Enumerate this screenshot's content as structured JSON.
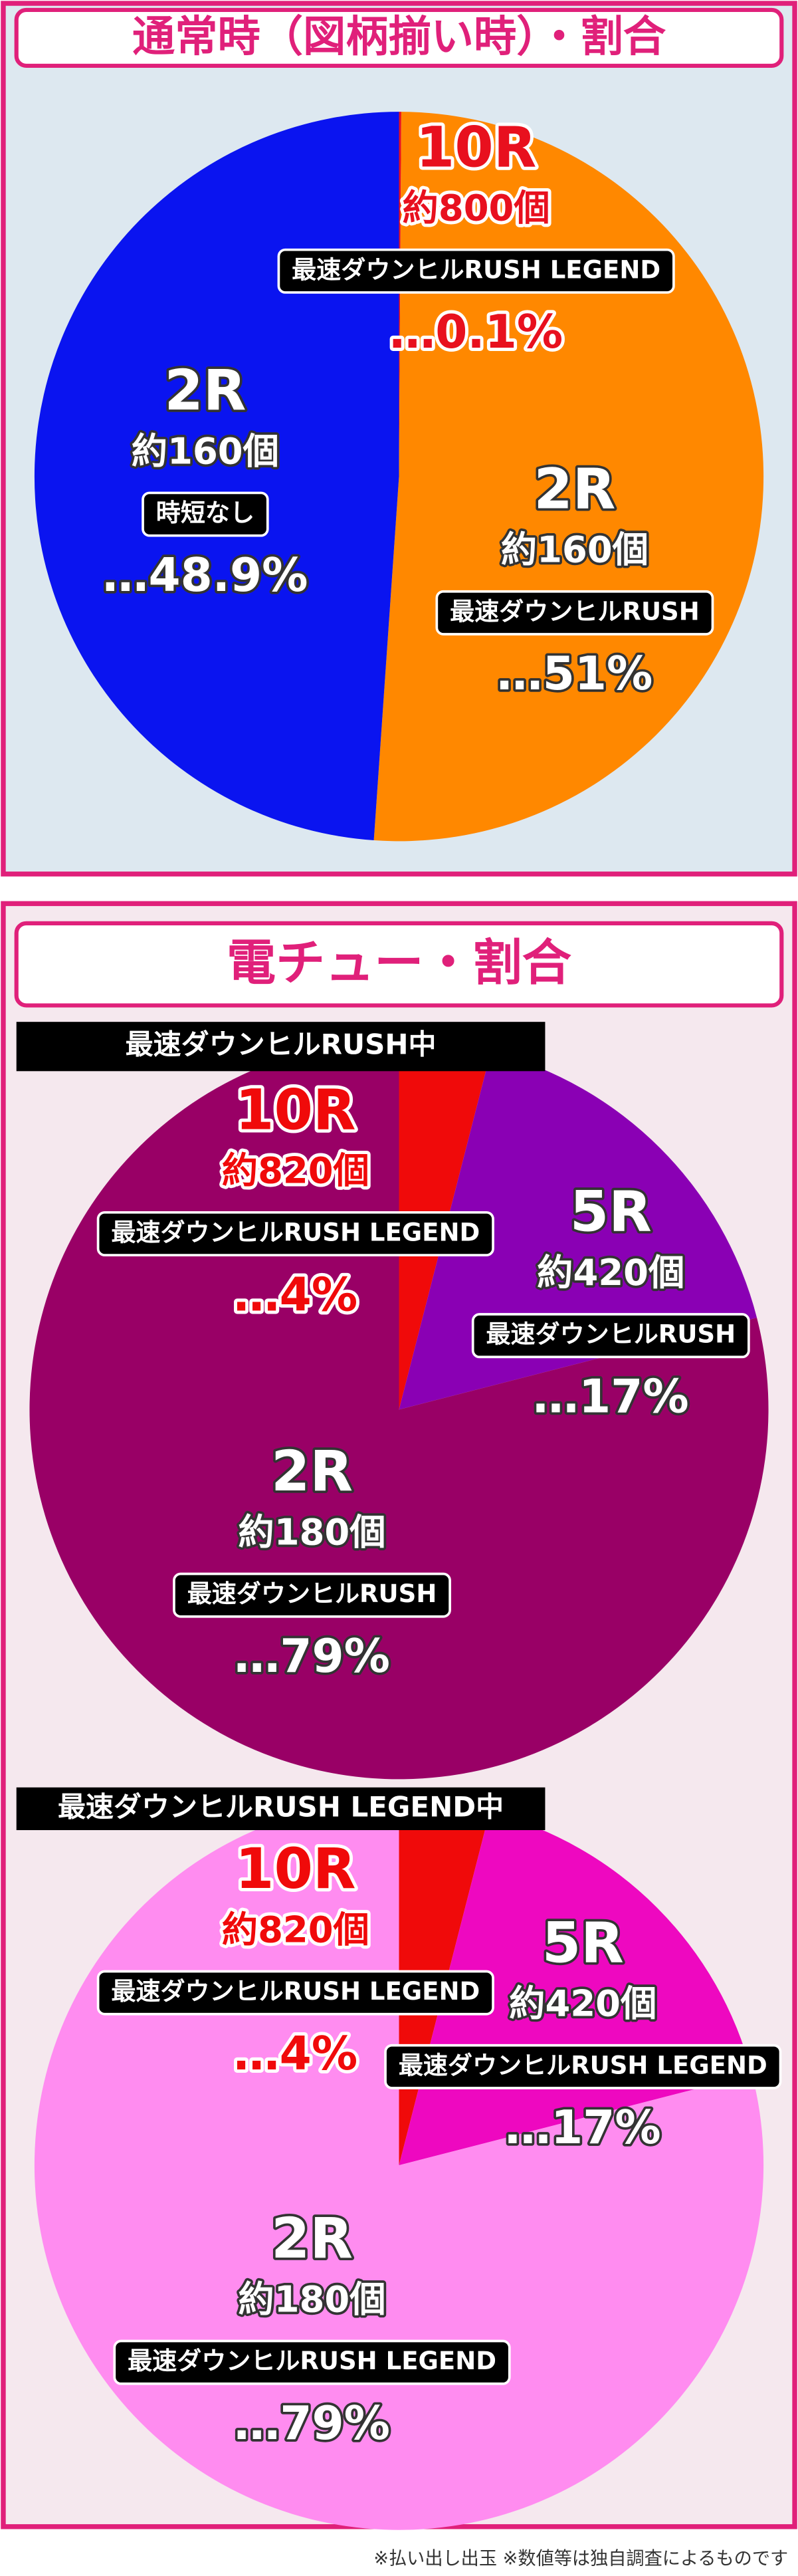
{
  "section_titles": [
    "通常時（図柄揃い時）・割合",
    "電チュー・割合"
  ],
  "footnote": "※払い出し出玉 ※数値等は独自調査によるものです",
  "chart_data": [
    {
      "type": "pie",
      "categories": [
        "10R",
        "2R",
        "2R"
      ],
      "payouts": [
        "約800個",
        "約160個",
        "約160個"
      ],
      "modes": [
        "最速ダウンヒルRUSH LEGEND",
        "最速ダウンヒルRUSH",
        "時短なし"
      ],
      "values": [
        0.1,
        51,
        48.9
      ],
      "value_labels": [
        "…0.1%",
        "…51%",
        "…48.9%"
      ],
      "colors": [
        "#e8101e",
        "#ff8800",
        "#0a14f0"
      ]
    },
    {
      "type": "pie",
      "title": "最速ダウンヒルRUSH中",
      "categories": [
        "10R",
        "5R",
        "2R"
      ],
      "payouts": [
        "約820個",
        "約420個",
        "約180個"
      ],
      "modes": [
        "最速ダウンヒルRUSH LEGEND",
        "最速ダウンヒルRUSH",
        "最速ダウンヒルRUSH"
      ],
      "values": [
        4,
        17,
        79
      ],
      "value_labels": [
        "…4%",
        "…17%",
        "…79%"
      ],
      "colors": [
        "#f00a0a",
        "#8a00b4",
        "#990066"
      ]
    },
    {
      "type": "pie",
      "title": "最速ダウンヒルRUSH LEGEND中",
      "categories": [
        "10R",
        "5R",
        "2R"
      ],
      "payouts": [
        "約820個",
        "約420個",
        "約180個"
      ],
      "modes": [
        "最速ダウンヒルRUSH LEGEND",
        "最速ダウンヒルRUSH LEGEND",
        "最速ダウンヒルRUSH LEGEND"
      ],
      "values": [
        4,
        17,
        79
      ],
      "value_labels": [
        "…4%",
        "…17%",
        "…79%"
      ],
      "colors": [
        "#f00a0a",
        "#ee08c0",
        "#ff8cf0"
      ]
    }
  ]
}
